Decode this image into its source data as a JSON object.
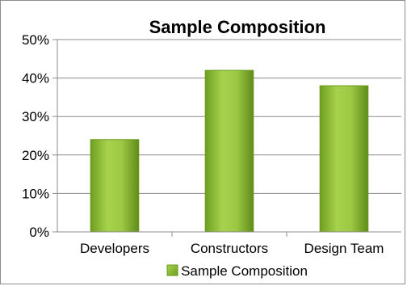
{
  "chart_data": {
    "type": "bar",
    "title": "Sample Composition",
    "categories": [
      "Developers",
      "Constructors",
      "Design Team"
    ],
    "series": [
      {
        "name": "Sample Composition",
        "values": [
          24,
          42,
          38
        ],
        "color": "#8fbf3a"
      }
    ],
    "y_ticks": [
      "0%",
      "10%",
      "20%",
      "30%",
      "40%",
      "50%"
    ],
    "ylim": [
      0,
      50
    ],
    "y_unit": "%",
    "grid": true,
    "legend": "bottom",
    "xlabel": "",
    "ylabel": ""
  }
}
